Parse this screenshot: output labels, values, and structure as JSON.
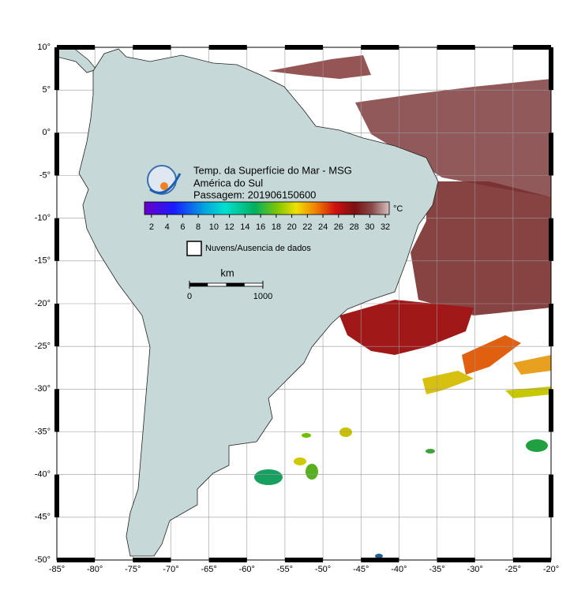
{
  "map": {
    "title": "Temp. da Superfície do Mar - MSG",
    "subtitle": "América do Sul",
    "pass": "Passagem: 201906150600",
    "xlim": [
      -85,
      -20
    ],
    "ylim": [
      -50,
      10
    ],
    "grid": true,
    "xticks": [
      {
        "value": -85,
        "label": "-85°"
      },
      {
        "value": -80,
        "label": "-80°"
      },
      {
        "value": -75,
        "label": "-75°"
      },
      {
        "value": -70,
        "label": "-70°"
      },
      {
        "value": -65,
        "label": "-65°"
      },
      {
        "value": -60,
        "label": "-60°"
      },
      {
        "value": -55,
        "label": "-55°"
      },
      {
        "value": -50,
        "label": "-50°"
      },
      {
        "value": -45,
        "label": "-45°"
      },
      {
        "value": -40,
        "label": "-40°"
      },
      {
        "value": -35,
        "label": "-35°"
      },
      {
        "value": -30,
        "label": "-30°"
      },
      {
        "value": -25,
        "label": "-25°"
      },
      {
        "value": -20,
        "label": "-20°"
      }
    ],
    "yticks": [
      {
        "value": 10,
        "label": "10°"
      },
      {
        "value": 5,
        "label": "5°"
      },
      {
        "value": 0,
        "label": "0°"
      },
      {
        "value": -5,
        "label": "-5°"
      },
      {
        "value": -10,
        "label": "-10°"
      },
      {
        "value": -15,
        "label": "-15°"
      },
      {
        "value": -20,
        "label": "-20°"
      },
      {
        "value": -25,
        "label": "-25°"
      },
      {
        "value": -30,
        "label": "-30°"
      },
      {
        "value": -35,
        "label": "-35°"
      },
      {
        "value": -40,
        "label": "-40°"
      },
      {
        "value": -45,
        "label": "-45°"
      },
      {
        "value": -50,
        "label": "-50°"
      }
    ],
    "colorbar": {
      "range": [
        1.1,
        32.5
      ],
      "ticks": [
        2,
        4,
        6,
        8,
        10,
        12,
        14,
        16,
        18,
        20,
        22,
        24,
        26,
        28,
        30,
        32
      ],
      "unit": "°C"
    },
    "legend": "Nuvens/Ausencia de dados",
    "scalebar": {
      "unit": "km",
      "ticks": [
        0,
        1000
      ]
    }
  }
}
